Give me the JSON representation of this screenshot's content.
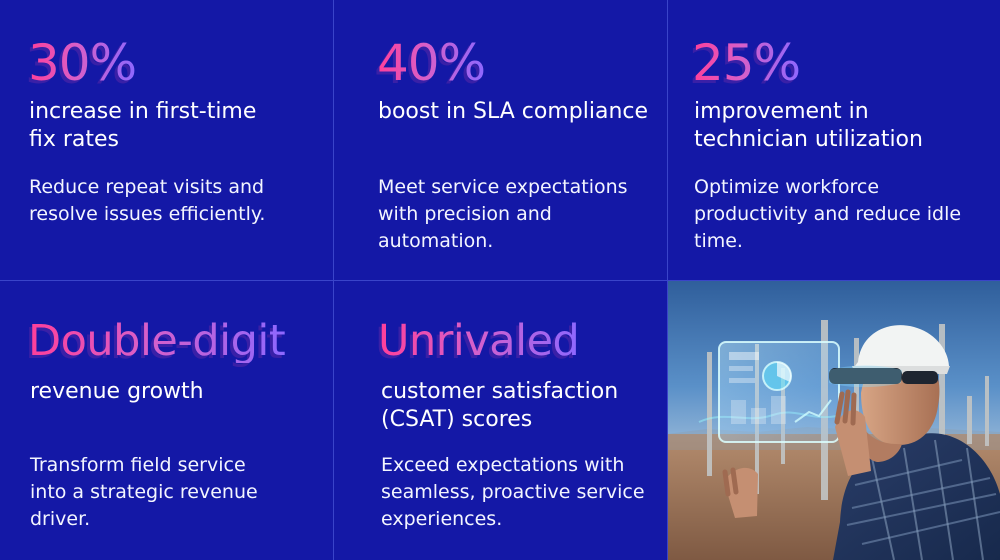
{
  "stats": [
    {
      "headline": "30%",
      "subtitle": "increase in first-time fix rates",
      "description": "Reduce repeat visits and resolve issues efficiently."
    },
    {
      "headline": "40%",
      "subtitle": "boost in SLA compliance",
      "description": "Meet service expectations with precision and automation."
    },
    {
      "headline": "25%",
      "subtitle": "improvement in technician utilization",
      "description": "Optimize workforce productivity and reduce idle time."
    },
    {
      "headline": "Double-digit",
      "subtitle": "revenue growth",
      "description": "Transform field service into a strategic revenue driver."
    },
    {
      "headline": "Unrivaled",
      "subtitle": "customer satisfaction (CSAT) scores",
      "description": "Exceed expectations with seamless, proactive service experiences."
    }
  ],
  "colors": {
    "background": "#1418a6",
    "gridline": "#3a44c9",
    "accent_pink": "#ff3f9a",
    "accent_purple": "#8d68ff",
    "text": "#ffffff"
  },
  "photo": {
    "icon": "technician-ar-headset-image"
  }
}
